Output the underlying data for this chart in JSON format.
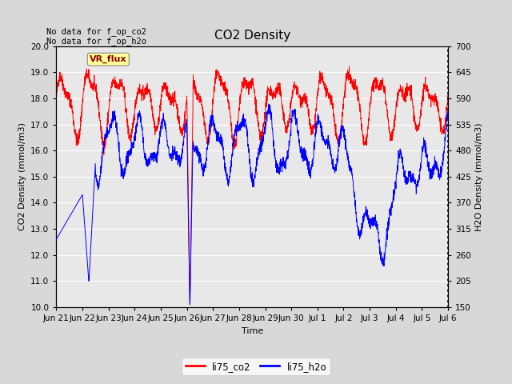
{
  "title": "CO2 Density",
  "xlabel": "Time",
  "ylabel_left": "CO2 Density (mmol/m3)",
  "ylabel_right": "H2O Density (mmol/m3)",
  "annotation_text": "No data for f_op_co2\nNo data for f_op_h2o",
  "vr_flux_label": "VR_flux",
  "legend_labels": [
    "li75_co2",
    "li75_h2o"
  ],
  "co2_color": "#FF0000",
  "h2o_color": "#0000FF",
  "ylim_left": [
    10.0,
    20.0
  ],
  "ylim_right": [
    150,
    700
  ],
  "bg_color": "#D8D8D8",
  "plot_bg_color": "#E8E8E8",
  "vr_flux_bg": "#FFFF99",
  "vr_flux_fg": "#8B0000",
  "grid_color": "#FFFFFF",
  "title_fontsize": 11,
  "label_fontsize": 8,
  "tick_fontsize": 7.5,
  "annot_fontsize": 7.5,
  "legend_fontsize": 8.5
}
